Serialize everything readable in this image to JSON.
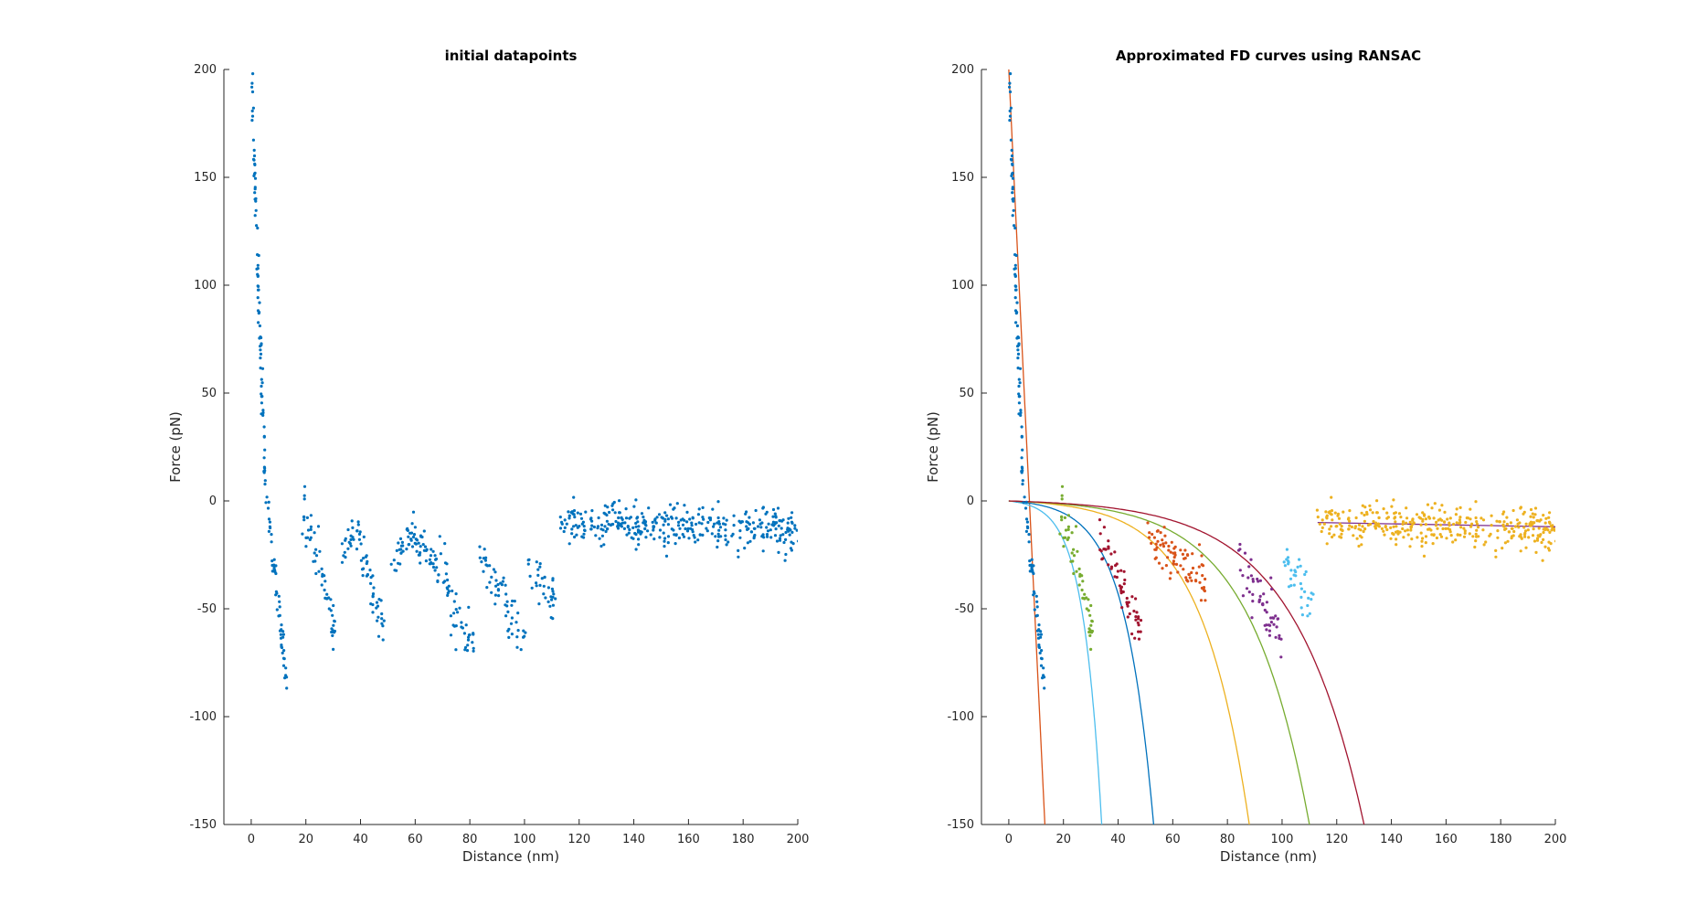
{
  "chart_data": [
    {
      "type": "scatter",
      "title": "initial datapoints",
      "xlabel": "Distance (nm)",
      "ylabel": "Force (pN)",
      "xlim": [
        -10,
        200
      ],
      "ylim": [
        -150,
        200
      ],
      "xticks": [
        "0",
        "20",
        "40",
        "60",
        "80",
        "100",
        "120",
        "140",
        "160",
        "180",
        "200"
      ],
      "yticks": [
        "200",
        "150",
        "100",
        "50",
        "0",
        "-50",
        "-100",
        "-150"
      ],
      "grid": false,
      "legend": "none",
      "series": [
        {
          "color": "#0072BD",
          "segments": [
            {
              "x0": 0,
              "x1": 5,
              "y0": 200,
              "y1": 10,
              "n": 80,
              "noise": 2
            },
            {
              "x0": 5,
              "x1": 13,
              "y0": 10,
              "y1": -85,
              "n": 55,
              "noise": 3
            },
            {
              "x0": 19,
              "x1": 31,
              "y0": -3,
              "y1": -62,
              "n": 55,
              "noise": 5
            },
            {
              "x0": 33,
              "x1": 40,
              "y0": -25,
              "y1": -12,
              "n": 25,
              "noise": 4
            },
            {
              "x0": 40,
              "x1": 49,
              "y0": -20,
              "y1": -62,
              "n": 40,
              "noise": 5
            },
            {
              "x0": 51,
              "x1": 60,
              "y0": -28,
              "y1": -13,
              "n": 35,
              "noise": 4
            },
            {
              "x0": 60,
              "x1": 72,
              "y0": -18,
              "y1": -37,
              "n": 50,
              "noise": 5
            },
            {
              "x0": 72,
              "x1": 82,
              "y0": -45,
              "y1": -70,
              "n": 35,
              "noise": 6
            },
            {
              "x0": 84,
              "x1": 100,
              "y0": -28,
              "y1": -63,
              "n": 55,
              "noise": 6
            },
            {
              "x0": 101,
              "x1": 111,
              "y0": -30,
              "y1": -45,
              "n": 35,
              "noise": 6
            },
            {
              "x0": 113,
              "x1": 200,
              "y0": -10,
              "y1": -13,
              "n": 360,
              "noise": 5
            }
          ]
        }
      ]
    },
    {
      "type": "scatter",
      "title": "Approximated FD curves using RANSAC",
      "xlabel": "Distance (nm)",
      "ylabel": "Force (pN)",
      "xlim": [
        -10,
        200
      ],
      "ylim": [
        -150,
        200
      ],
      "xticks": [
        "0",
        "20",
        "40",
        "60",
        "80",
        "100",
        "120",
        "140",
        "160",
        "180",
        "200"
      ],
      "yticks": [
        "200",
        "150",
        "100",
        "50",
        "0",
        "-50",
        "-100",
        "-150"
      ],
      "grid": false,
      "legend": "none",
      "series": [
        {
          "color": "#0072BD",
          "segments": [
            {
              "x0": 0,
              "x1": 5,
              "y0": 200,
              "y1": 10,
              "n": 80,
              "noise": 2
            },
            {
              "x0": 5,
              "x1": 13,
              "y0": 10,
              "y1": -85,
              "n": 55,
              "noise": 3
            }
          ]
        },
        {
          "color": "#77AC30",
          "segments": [
            {
              "x0": 19,
              "x1": 31,
              "y0": -3,
              "y1": -62,
              "n": 55,
              "noise": 5
            }
          ]
        },
        {
          "color": "#A2142F",
          "segments": [
            {
              "x0": 33,
              "x1": 49,
              "y0": -15,
              "y1": -62,
              "n": 60,
              "noise": 5
            }
          ]
        },
        {
          "color": "#D95319",
          "segments": [
            {
              "x0": 51,
              "x1": 72,
              "y0": -15,
              "y1": -38,
              "n": 80,
              "noise": 5
            }
          ]
        },
        {
          "color": "#7E2F8E",
          "segments": [
            {
              "x0": 84,
              "x1": 100,
              "y0": -25,
              "y1": -65,
              "n": 55,
              "noise": 6
            }
          ]
        },
        {
          "color": "#4DBEEE",
          "segments": [
            {
              "x0": 101,
              "x1": 111,
              "y0": -30,
              "y1": -45,
              "n": 35,
              "noise": 6
            }
          ]
        },
        {
          "color": "#EDB120",
          "segments": [
            {
              "x0": 113,
              "x1": 200,
              "y0": -10,
              "y1": -13,
              "n": 360,
              "noise": 5
            }
          ]
        }
      ],
      "fits": [
        {
          "type": "line",
          "color": "#D95319",
          "points": [
            [
              0,
              200
            ],
            [
              13.2,
              -150
            ]
          ]
        },
        {
          "type": "exp",
          "color": "#4DBEEE",
          "x_end": 34,
          "y_end": -150
        },
        {
          "type": "exp",
          "color": "#0072BD",
          "x_end": 53,
          "y_end": -150
        },
        {
          "type": "exp",
          "color": "#EDB120",
          "x_end": 88,
          "y_end": -150
        },
        {
          "type": "exp",
          "color": "#77AC30",
          "x_end": 110,
          "y_end": -150
        },
        {
          "type": "exp",
          "color": "#A2142F",
          "x_end": 130,
          "y_end": -150
        },
        {
          "type": "line",
          "color": "#7E2F8E",
          "points": [
            [
              113,
              -10
            ],
            [
              200,
              -12
            ]
          ]
        }
      ]
    }
  ]
}
